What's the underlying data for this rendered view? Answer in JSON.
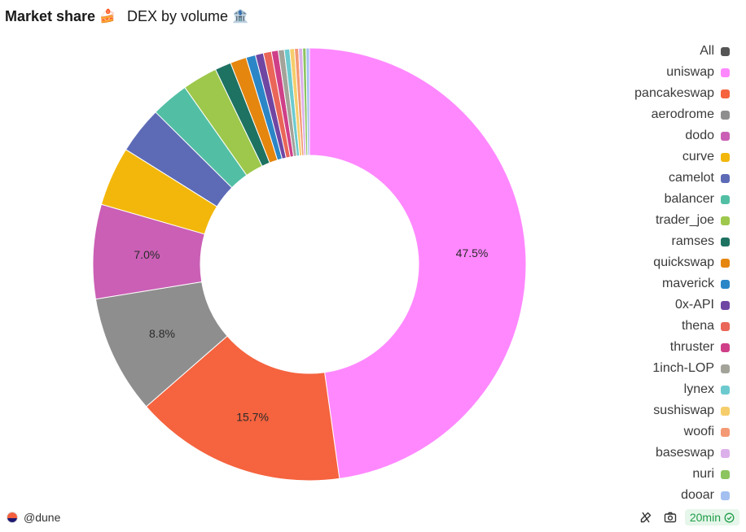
{
  "header": {
    "title": "Market share",
    "title_emoji": "🍰",
    "subtitle": "DEX by volume",
    "subtitle_emoji": "🏦"
  },
  "chart_data": {
    "type": "pie",
    "variant": "donut",
    "title": "DEX by volume",
    "legend_position": "right",
    "legend_all_label": "All",
    "legend_all_color": "#555555",
    "series": [
      {
        "name": "uniswap",
        "value": 47.5,
        "color": "#ff88ff"
      },
      {
        "name": "pancakeswap",
        "value": 15.7,
        "color": "#f5633f"
      },
      {
        "name": "aerodrome",
        "value": 8.8,
        "color": "#8e8e8e"
      },
      {
        "name": "dodo",
        "value": 7.0,
        "color": "#ca5fb5"
      },
      {
        "name": "curve",
        "value": 4.4,
        "color": "#f2b70a"
      },
      {
        "name": "camelot",
        "value": 3.5,
        "color": "#5d6bb6"
      },
      {
        "name": "balancer",
        "value": 2.8,
        "color": "#52bfa5"
      },
      {
        "name": "trader_joe",
        "value": 2.6,
        "color": "#9dc84b"
      },
      {
        "name": "ramses",
        "value": 1.2,
        "color": "#1e7261"
      },
      {
        "name": "quickswap",
        "value": 1.2,
        "color": "#e5860f"
      },
      {
        "name": "maverick",
        "value": 0.7,
        "color": "#2b86c7"
      },
      {
        "name": "0x-API",
        "value": 0.6,
        "color": "#7046a3"
      },
      {
        "name": "thena",
        "value": 0.6,
        "color": "#ea6658"
      },
      {
        "name": "thruster",
        "value": 0.5,
        "color": "#cf3f88"
      },
      {
        "name": "1inch-LOP",
        "value": 0.45,
        "color": "#a3a39a"
      },
      {
        "name": "lynex",
        "value": 0.4,
        "color": "#6ccacf"
      },
      {
        "name": "sushiswap",
        "value": 0.35,
        "color": "#f5cd6b"
      },
      {
        "name": "woofi",
        "value": 0.3,
        "color": "#f39a74"
      },
      {
        "name": "baseswap",
        "value": 0.3,
        "color": "#dcb0ea"
      },
      {
        "name": "nuri",
        "value": 0.25,
        "color": "#8cc45f"
      },
      {
        "name": "dooar",
        "value": 0.25,
        "color": "#a4c0f0"
      }
    ],
    "labels_shown": [
      {
        "name": "uniswap",
        "text": "47.5%"
      },
      {
        "name": "pancakeswap",
        "text": "15.7%"
      },
      {
        "name": "aerodrome",
        "text": "8.8%"
      },
      {
        "name": "dodo",
        "text": "7.0%"
      }
    ]
  },
  "footer": {
    "handle": "@dune",
    "refresh_badge": "20min",
    "icons": [
      "refresh-icon",
      "camera-icon",
      "check-circle-icon"
    ],
    "badge_color": "#1f9d48"
  }
}
